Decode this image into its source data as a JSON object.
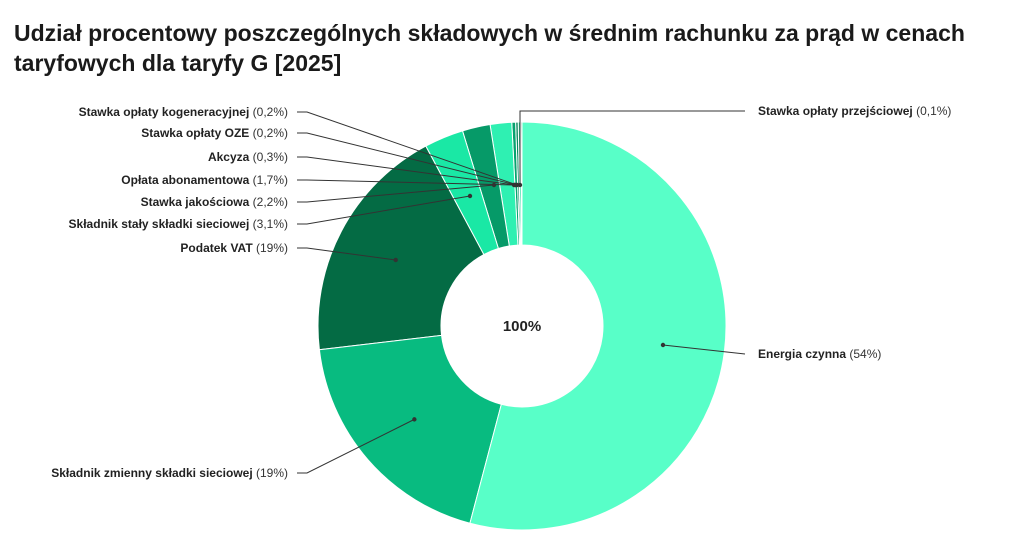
{
  "chart_data": {
    "type": "pie",
    "variant": "donut",
    "title": "Udział procentowy poszczególnych składowych w średnim rachunku za prąd w cenach taryfowych dla taryfy G [2025]",
    "center_label": "100%",
    "slices": [
      {
        "name": "Energia czynna",
        "value": 54,
        "value_label": "(54%)",
        "color": "#58ffc8"
      },
      {
        "name": "Składnik zmienny składki sieciowej",
        "value": 19,
        "value_label": "(19%)",
        "color": "#08bb80"
      },
      {
        "name": "Podatek VAT",
        "value": 19,
        "value_label": "(19%)",
        "color": "#046b44"
      },
      {
        "name": "Składnik stały składki sieciowej",
        "value": 3.1,
        "value_label": "(3,1%)",
        "color": "#1ae8a5"
      },
      {
        "name": "Stawka jakościowa",
        "value": 2.2,
        "value_label": "(2,2%)",
        "color": "#069a68"
      },
      {
        "name": "Opłata abonamentowa",
        "value": 1.7,
        "value_label": "(1,7%)",
        "color": "#2ff0b2"
      },
      {
        "name": "Akcyza",
        "value": 0.3,
        "value_label": "(0,3%)",
        "color": "#07a26f"
      },
      {
        "name": "Stawka opłaty OZE",
        "value": 0.2,
        "value_label": "(0,2%)",
        "color": "#0a8c5f"
      },
      {
        "name": "Stawka opłaty kogeneracyjnej",
        "value": 0.2,
        "value_label": "(0,2%)",
        "color": "#2adba0"
      },
      {
        "name": "Stawka opłaty przejściowej",
        "value": 0.1,
        "value_label": "(0,1%)",
        "color": "#057a50"
      }
    ]
  }
}
